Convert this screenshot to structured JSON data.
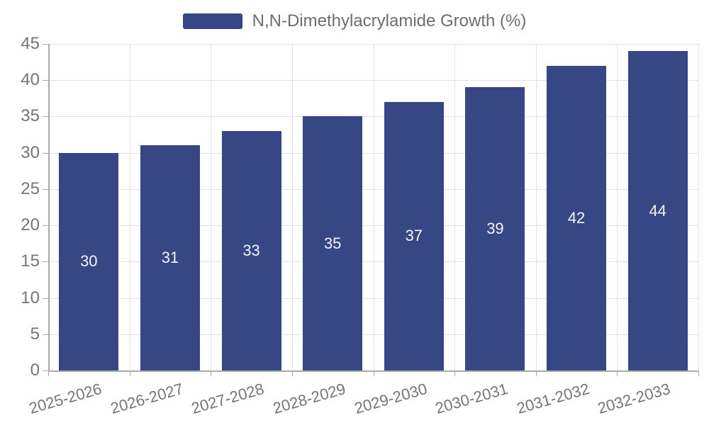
{
  "legend": {
    "label": "N,N-Dimethylacrylamide Growth (%)"
  },
  "chart_data": {
    "type": "bar",
    "title": "N,N-Dimethylacrylamide Growth (%)",
    "categories": [
      "2025-2026",
      "2026-2027",
      "2027-2028",
      "2028-2029",
      "2029-2030",
      "2030-2031",
      "2031-2032",
      "2032-2033"
    ],
    "values": [
      30,
      31,
      33,
      35,
      37,
      39,
      42,
      44
    ],
    "xlabel": "",
    "ylabel": "",
    "ylim": [
      0,
      45
    ],
    "ytick_step": 5,
    "yticks": [
      0,
      5,
      10,
      15,
      20,
      25,
      30,
      35,
      40,
      45
    ],
    "grid": true,
    "legend_position": "top-center",
    "value_labels": "inside-middle",
    "colors": {
      "bar": "#374784",
      "value_label": "#f4f4f4",
      "axis_text": "#757575",
      "legend_text": "#6e6e6e",
      "gridline": "#e2e2e2",
      "axis_line": "#aaaaaa"
    }
  }
}
